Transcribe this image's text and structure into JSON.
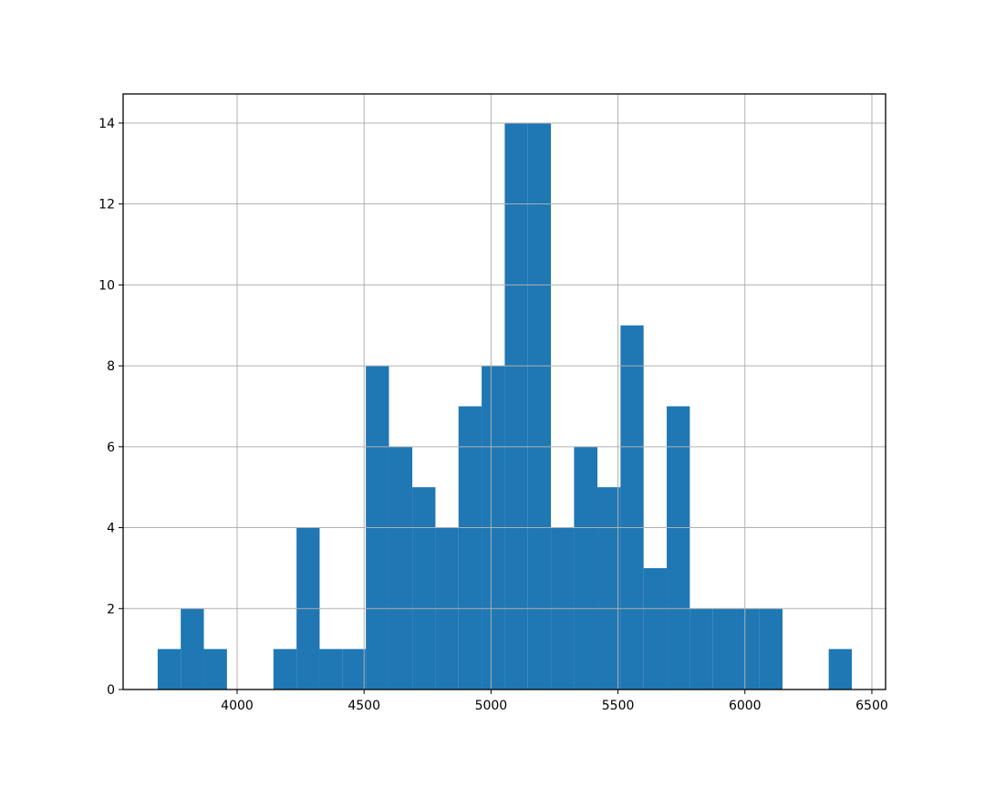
{
  "chart_data": {
    "type": "histogram",
    "bins": [
      3687,
      3778,
      3869,
      3960,
      4052,
      4143,
      4234,
      4325,
      4416,
      4507,
      4598,
      4690,
      4781,
      4872,
      4963,
      5054,
      5145,
      5236,
      5327,
      5419,
      5510,
      5601,
      5692,
      5783,
      5874,
      5965,
      6056,
      6148,
      6239,
      6330,
      6421
    ],
    "counts": [
      1,
      2,
      1,
      0,
      0,
      1,
      4,
      1,
      1,
      8,
      6,
      5,
      4,
      7,
      8,
      14,
      14,
      4,
      6,
      5,
      9,
      3,
      7,
      2,
      2,
      2,
      2,
      0,
      0,
      1
    ],
    "color": "#1f77b4",
    "xlim": [
      3551,
      6554
    ],
    "xticks": [
      4000,
      4500,
      5000,
      5500,
      6000,
      6500
    ],
    "ylim": [
      0,
      14.72
    ],
    "yticks": [
      0,
      2,
      4,
      6,
      8,
      10,
      12,
      14
    ],
    "grid": true
  }
}
